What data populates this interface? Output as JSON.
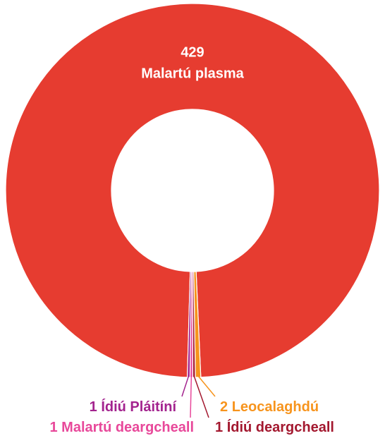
{
  "chart_data": {
    "type": "donut",
    "categories": [
      "Malartú plasma",
      "Leocalaghdú",
      "Ídiú deargcheall",
      "Malartú deargcheall",
      "Ídiú Pláitíní"
    ],
    "values": [
      429,
      2,
      1,
      1,
      1
    ],
    "colors": [
      "#e63c30",
      "#f7941d",
      "#a3182f",
      "#e8489a",
      "#a3238e"
    ]
  }
}
